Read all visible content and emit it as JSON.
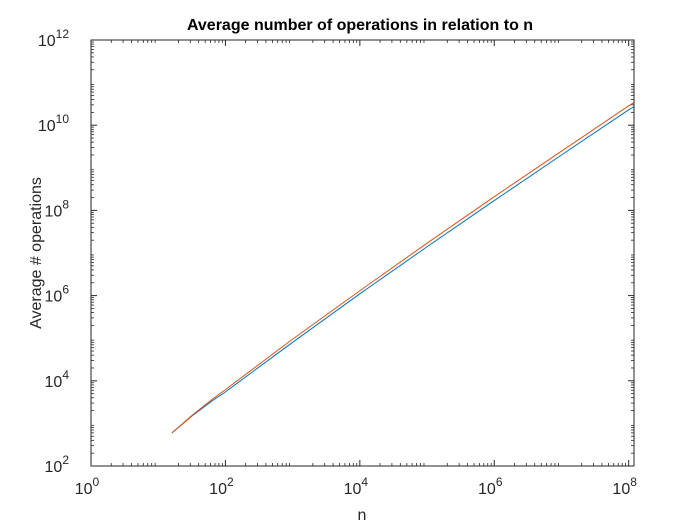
{
  "chart_data": {
    "type": "line",
    "title": "Average number of operations in relation to n",
    "xlabel": "n",
    "ylabel": "Average # operations",
    "xscale": "log",
    "yscale": "log",
    "xlim": [
      1,
      120000000
    ],
    "ylim": [
      100,
      1000000000000
    ],
    "x_ticks": [
      {
        "value": 1,
        "base": "10",
        "exp": "0"
      },
      {
        "value": 100,
        "base": "10",
        "exp": "2"
      },
      {
        "value": 10000,
        "base": "10",
        "exp": "4"
      },
      {
        "value": 1000000,
        "base": "10",
        "exp": "6"
      },
      {
        "value": 100000000,
        "base": "10",
        "exp": "8"
      }
    ],
    "y_ticks": [
      {
        "value": 100,
        "base": "10",
        "exp": "2"
      },
      {
        "value": 10000,
        "base": "10",
        "exp": "4"
      },
      {
        "value": 1000000,
        "base": "10",
        "exp": "6"
      },
      {
        "value": 100000000,
        "base": "10",
        "exp": "8"
      },
      {
        "value": 10000000000,
        "base": "10",
        "exp": "10"
      },
      {
        "value": 1000000000000,
        "base": "10",
        "exp": "12"
      }
    ],
    "grid": false,
    "box": true,
    "series": [
      {
        "color": "#0072BD",
        "x": [
          16,
          32,
          64,
          100,
          1000,
          10000,
          100000,
          1000000,
          10000000,
          100000000,
          120000000
        ],
        "y": [
          600,
          1500,
          3400,
          5500,
          80000,
          1100000,
          14000000,
          170000000,
          2000000000,
          23000000000,
          27000000000
        ]
      },
      {
        "color": "#D95319",
        "x": [
          16,
          32,
          64,
          100,
          1000,
          10000,
          100000,
          1000000,
          10000000,
          100000000,
          120000000
        ],
        "y": [
          600,
          1550,
          3700,
          6200,
          95000,
          1300000,
          17000000,
          210000000,
          2450000000,
          28500000000,
          34000000000
        ]
      }
    ]
  }
}
